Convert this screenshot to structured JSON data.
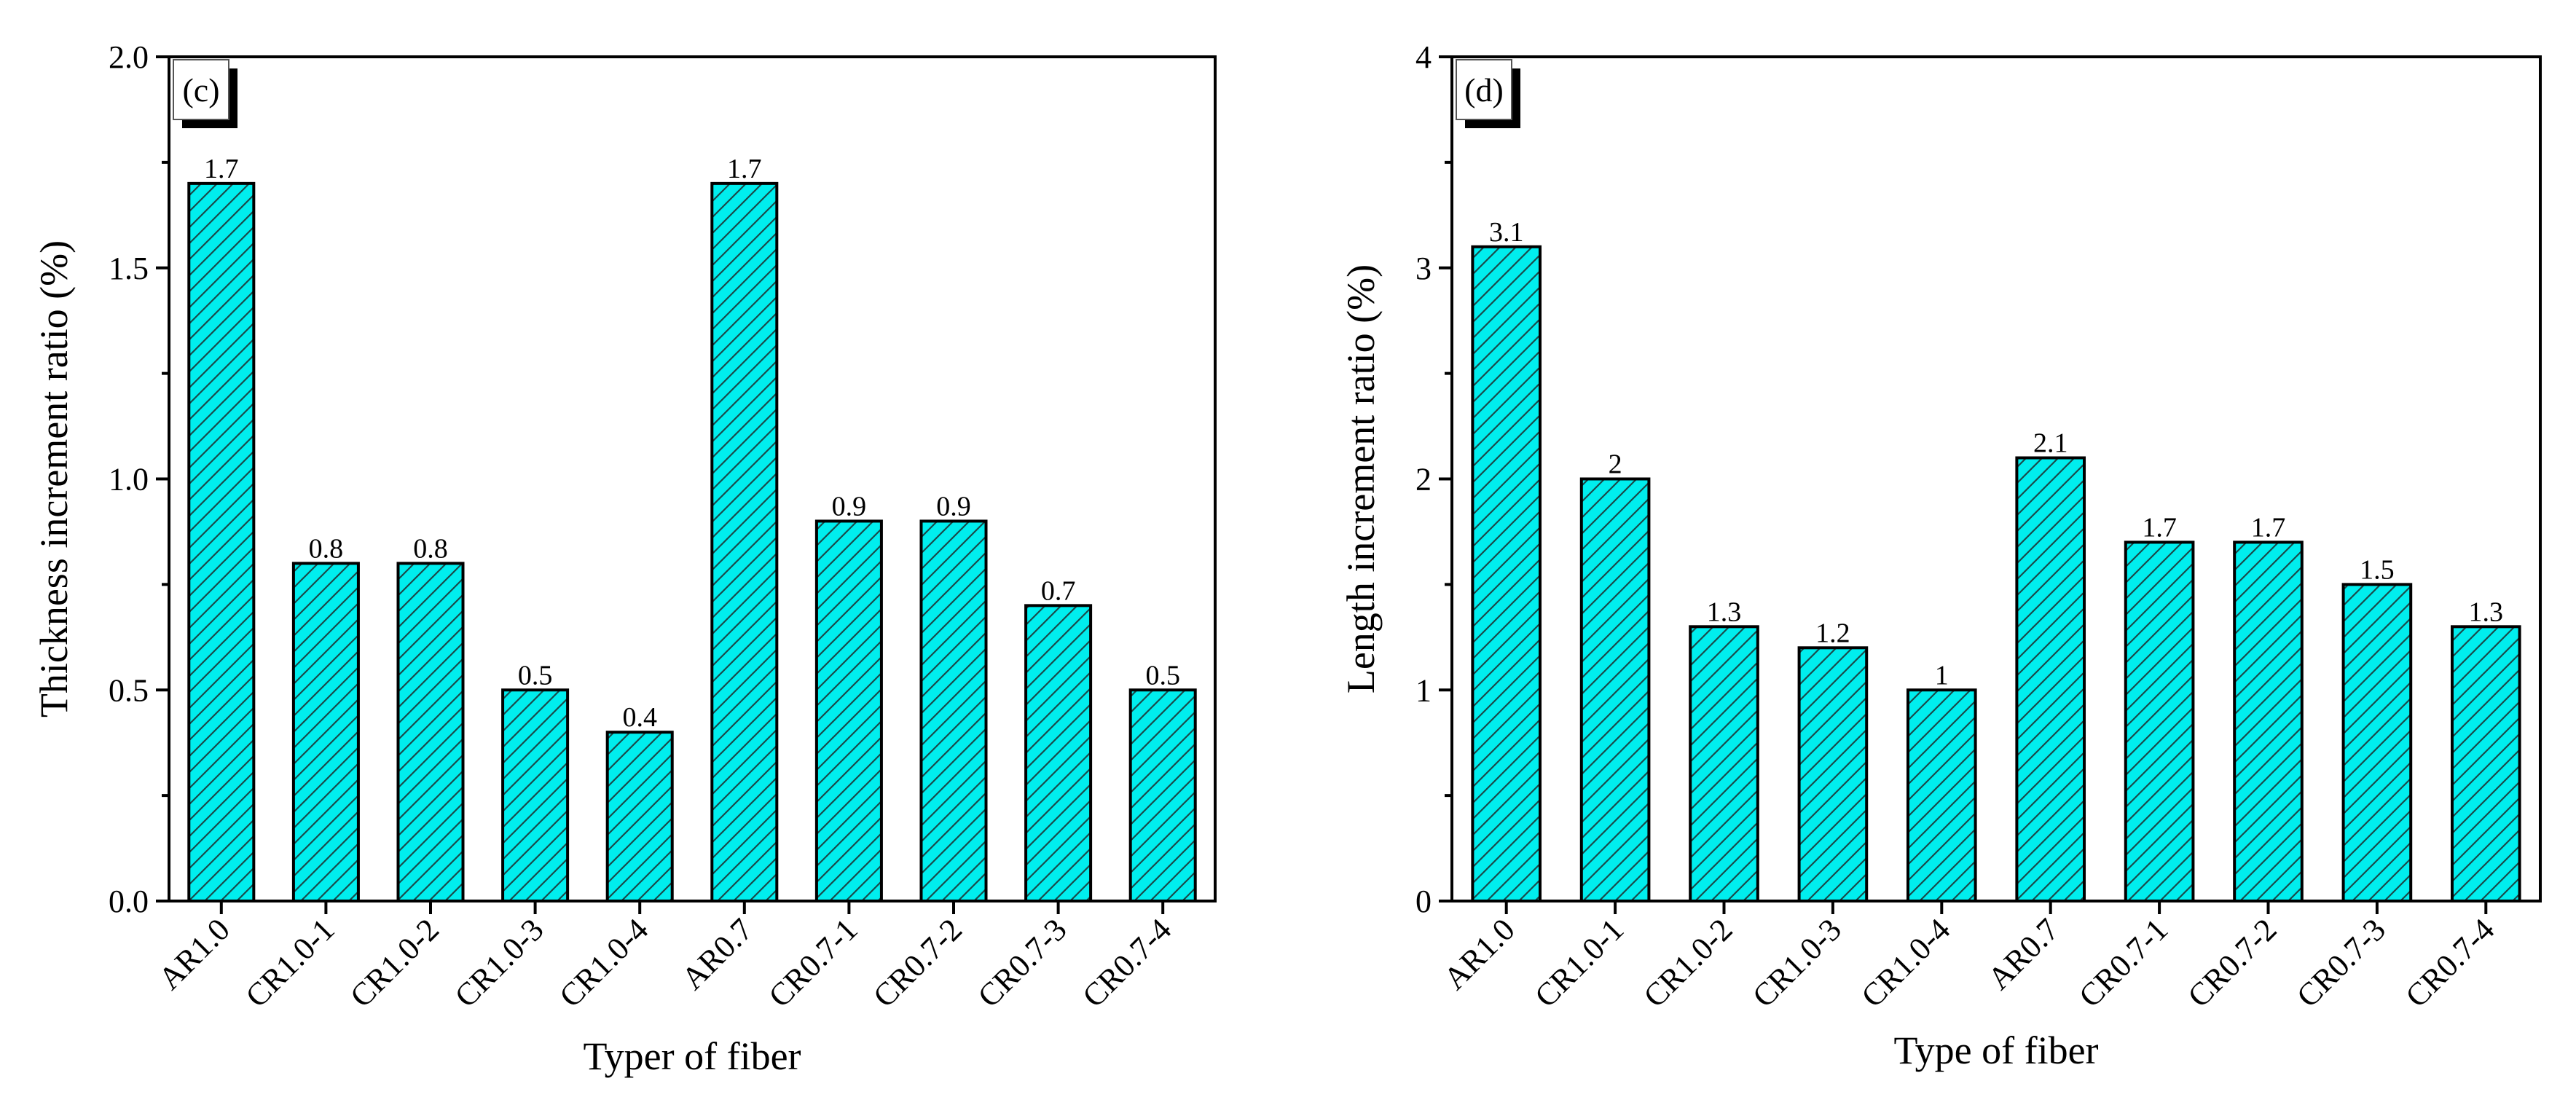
{
  "colors": {
    "bar_fill": "#00eeee",
    "hatch": "#1a4a4a",
    "axis": "#000000"
  },
  "chart_data": [
    {
      "type": "bar",
      "panel_label": "(c)",
      "categories": [
        "AR1.0",
        "CR1.0-1",
        "CR1.0-2",
        "CR1.0-3",
        "CR1.0-4",
        "AR0.7",
        "CR0.7-1",
        "CR0.7-2",
        "CR0.7-3",
        "CR0.7-4"
      ],
      "values": [
        1.7,
        0.8,
        0.8,
        0.5,
        0.4,
        1.7,
        0.9,
        0.9,
        0.7,
        0.5
      ],
      "value_labels": [
        "1.7",
        "0.8",
        "0.8",
        "0.5",
        "0.4",
        "1.7",
        "0.9",
        "0.9",
        "0.7",
        "0.5"
      ],
      "xlabel": "Typer of fiber",
      "ylabel": "Thickness increment ratio (%)",
      "ylim": [
        0,
        2.0
      ],
      "yticks": [
        0.0,
        0.5,
        1.0,
        1.5,
        2.0
      ],
      "ytick_labels": [
        "0.0",
        "0.5",
        "1.0",
        "1.5",
        "2.0"
      ],
      "grid": false,
      "legend": "none"
    },
    {
      "type": "bar",
      "panel_label": "(d)",
      "categories": [
        "AR1.0",
        "CR1.0-1",
        "CR1.0-2",
        "CR1.0-3",
        "CR1.0-4",
        "AR0.7",
        "CR0.7-1",
        "CR0.7-2",
        "CR0.7-3",
        "CR0.7-4"
      ],
      "values": [
        3.1,
        2,
        1.3,
        1.2,
        1,
        2.1,
        1.7,
        1.7,
        1.5,
        1.3
      ],
      "value_labels": [
        "3.1",
        "2",
        "1.3",
        "1.2",
        "1",
        "2.1",
        "1.7",
        "1.7",
        "1.5",
        "1.3"
      ],
      "xlabel": "Type of fiber",
      "ylabel": "Length increment ratio (%)",
      "ylim": [
        0,
        4
      ],
      "yticks": [
        0,
        1,
        2,
        3,
        4
      ],
      "ytick_labels": [
        "0",
        "1",
        "2",
        "3",
        "4"
      ],
      "grid": false,
      "legend": "none"
    }
  ]
}
